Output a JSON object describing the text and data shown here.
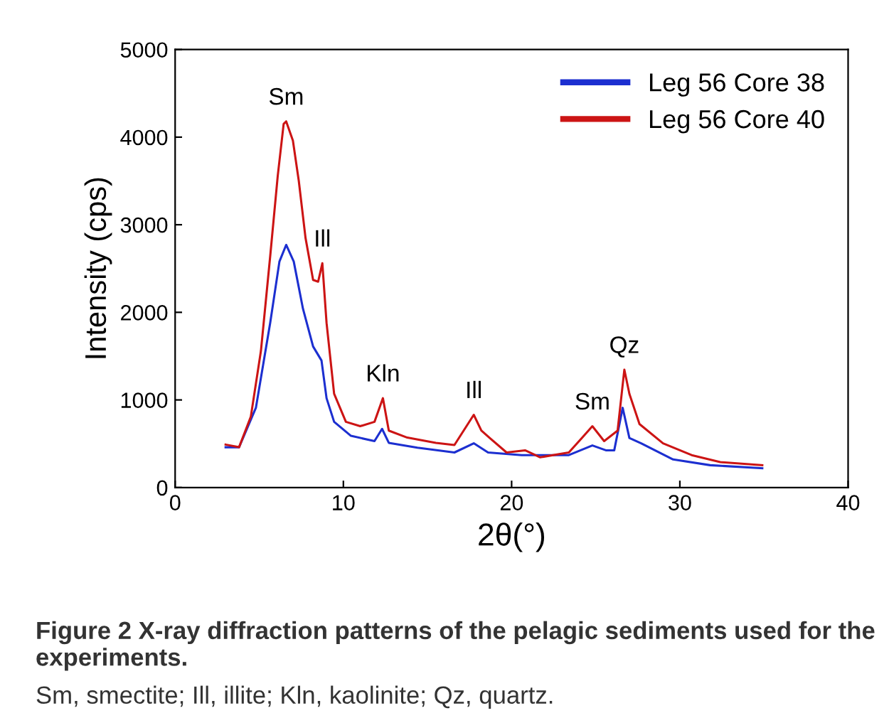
{
  "chart_data": {
    "type": "line",
    "xlabel": "2θ(°)",
    "ylabel": "Intensity (cps)",
    "xlim": [
      0,
      40
    ],
    "xticks": [
      0,
      10,
      20,
      30,
      40
    ],
    "ylim": [
      0,
      5000
    ],
    "yticks": [
      0,
      1000,
      2000,
      3000,
      4000,
      5000
    ],
    "grid": false,
    "legend": "top right",
    "marker": "none",
    "line_style": "solid",
    "series": [
      {
        "name": "Leg 56 Core 38",
        "color": "#1c2fd0",
        "x": [
          3.0,
          3.8,
          4.8,
          5.65,
          6.2,
          6.6,
          7.05,
          7.6,
          8.2,
          8.7,
          9.0,
          9.45,
          10.45,
          11.85,
          12.3,
          12.7,
          14.4,
          16.6,
          17.75,
          18.6,
          20.6,
          23.4,
          24.8,
          25.6,
          26.1,
          26.6,
          27.0,
          27.7,
          29.6,
          31.8,
          34.9
        ],
        "values": [
          460,
          460,
          910,
          1880,
          2580,
          2770,
          2580,
          2040,
          1610,
          1450,
          1020,
          750,
          590,
          530,
          670,
          510,
          455,
          400,
          505,
          400,
          370,
          370,
          480,
          425,
          425,
          910,
          565,
          505,
          320,
          255,
          220
        ]
      },
      {
        "name": "Leg 56 Core 40",
        "color": "#cc1414",
        "x": [
          3.0,
          3.8,
          4.5,
          5.1,
          5.65,
          6.1,
          6.45,
          6.6,
          7.0,
          7.35,
          7.75,
          8.2,
          8.5,
          8.75,
          9.0,
          9.45,
          10.15,
          11.0,
          11.85,
          12.35,
          12.7,
          13.8,
          15.5,
          16.6,
          17.75,
          18.2,
          18.7,
          19.7,
          20.8,
          21.7,
          23.4,
          24.2,
          24.8,
          25.5,
          26.3,
          26.7,
          27.0,
          27.6,
          29.0,
          30.7,
          32.4,
          34.9
        ],
        "values": [
          490,
          460,
          810,
          1560,
          2640,
          3560,
          4150,
          4180,
          3960,
          3500,
          2850,
          2370,
          2350,
          2560,
          1880,
          1070,
          750,
          700,
          750,
          1020,
          650,
          570,
          510,
          485,
          830,
          650,
          565,
          400,
          425,
          345,
          400,
          570,
          700,
          530,
          650,
          1345,
          1070,
          725,
          505,
          370,
          290,
          255
        ]
      }
    ],
    "annotations": [
      {
        "text": "Sm",
        "x": 6.6,
        "y": 4180
      },
      {
        "text": "Ill",
        "x": 8.75,
        "y": 2560
      },
      {
        "text": "Kln",
        "x": 12.35,
        "y": 1020
      },
      {
        "text": "Ill",
        "x": 17.75,
        "y": 830
      },
      {
        "text": "Sm",
        "x": 24.8,
        "y": 700
      },
      {
        "text": "Qz",
        "x": 26.7,
        "y": 1345
      },
      "Figure 2 X-ray diffraction patterns of the pelagic sediments used for the experiments.",
      "Sm, smectite; Ill, illite; Kln, kaolinite; Qz, quartz."
    ]
  }
}
